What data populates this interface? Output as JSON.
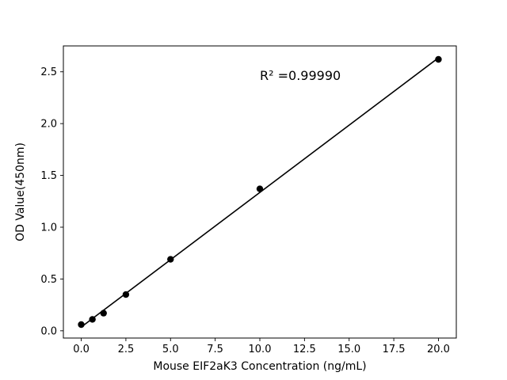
{
  "chart_data": {
    "type": "scatter",
    "title": "",
    "xlabel": "Mouse EIF2aK3 Concentration (ng/mL)",
    "ylabel": "OD Value(450nm)",
    "x": [
      0,
      0.625,
      1.25,
      2.5,
      5,
      10,
      20
    ],
    "y": [
      0.06,
      0.11,
      0.17,
      0.35,
      0.69,
      1.37,
      2.62
    ],
    "fit_line": true,
    "annotation": {
      "text": "R² =0.99990",
      "x": 10,
      "y": 2.42
    },
    "x_tick_labels": [
      "0.0",
      "2.5",
      "5.0",
      "7.5",
      "10.0",
      "12.5",
      "15.0",
      "17.5",
      "20.0"
    ],
    "x_tick_values": [
      0,
      2.5,
      5,
      7.5,
      10,
      12.5,
      15,
      17.5,
      20
    ],
    "y_tick_labels": [
      "0.0",
      "0.5",
      "1.0",
      "1.5",
      "2.0",
      "2.5"
    ],
    "y_tick_values": [
      0,
      0.5,
      1.0,
      1.5,
      2.0,
      2.5
    ],
    "xlim": [
      -1,
      21
    ],
    "ylim": [
      -0.07,
      2.75
    ],
    "grid": false,
    "legend": "none",
    "marker_color": "#000000",
    "line_color": "#000000",
    "frame_color": "#000000",
    "background_color": "#ffffff"
  }
}
